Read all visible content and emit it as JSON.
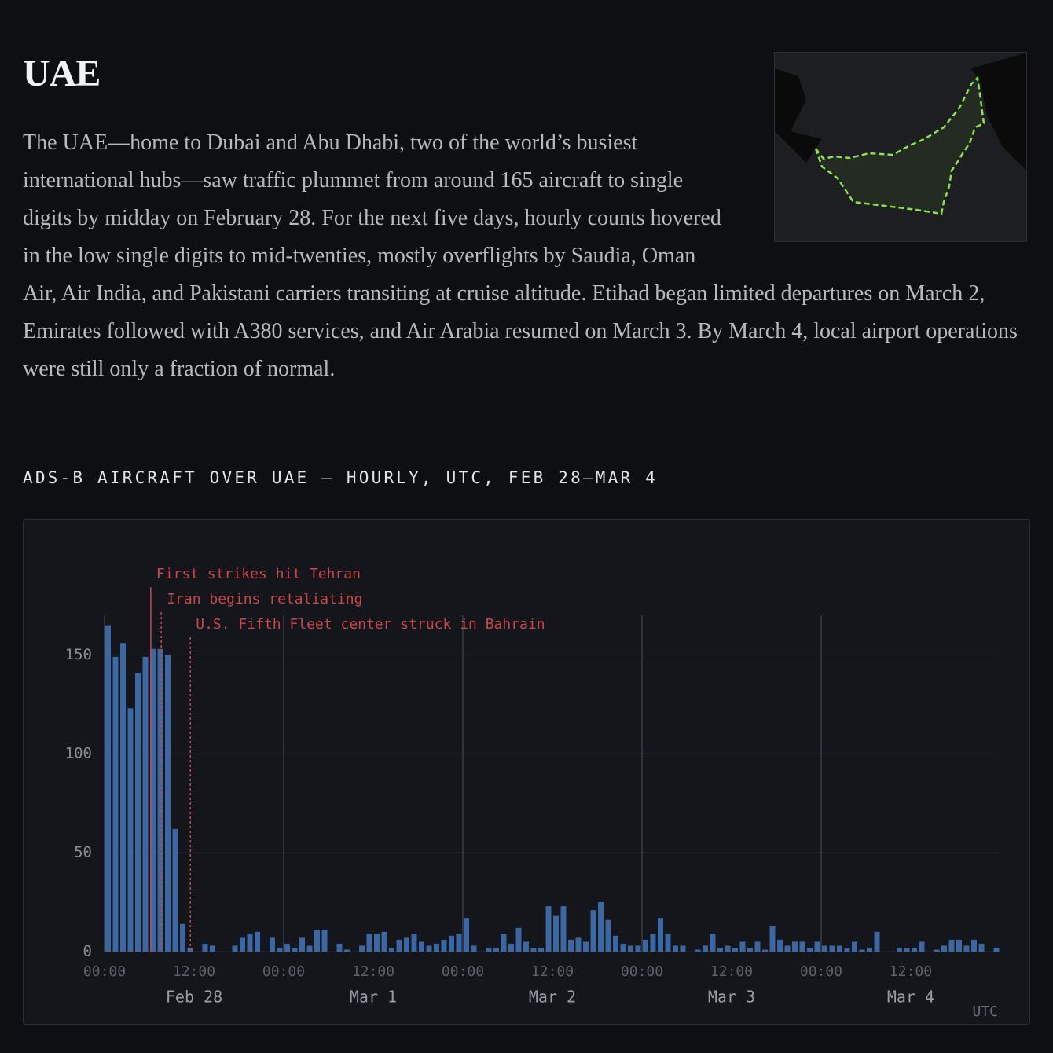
{
  "header": {
    "title": "UAE",
    "body": "The UAE—home to Dubai and Abu Dhabi, two of the world’s busiest international hubs—saw traffic plummet from around 165 aircraft to single digits by midday on February 28. For the next five days, hourly counts hovered in the low single digits to mid-twenties, mostly overflights by Saudia, Oman Air, Air India, and Pakistani carriers transiting at cruise altitude. Etihad began limited departures on March 2, Emirates followed with A380 services, and Air Arabia resumed on March 3. By March 4, local airport operations were still only a fraction of normal."
  },
  "chart_data": {
    "type": "bar",
    "title": "ADS-B AIRCRAFT OVER UAE — HOURLY, UTC, FEB 28–MAR 4",
    "x": [
      0,
      1,
      2,
      3,
      4,
      5,
      6,
      7,
      8,
      9,
      10,
      11,
      12,
      13,
      14,
      15,
      16,
      17,
      18,
      19,
      20,
      21,
      22,
      23,
      24,
      25,
      26,
      27,
      28,
      29,
      30,
      31,
      32,
      33,
      34,
      35,
      36,
      37,
      38,
      39,
      40,
      41,
      42,
      43,
      44,
      45,
      46,
      47,
      48,
      49,
      50,
      51,
      52,
      53,
      54,
      55,
      56,
      57,
      58,
      59,
      60,
      61,
      62,
      63,
      64,
      65,
      66,
      67,
      68,
      69,
      70,
      71,
      72,
      73,
      74,
      75,
      76,
      77,
      78,
      79,
      80,
      81,
      82,
      83,
      84,
      85,
      86,
      87,
      88,
      89,
      90,
      91,
      92,
      93,
      94,
      95,
      96,
      97,
      98,
      99,
      100,
      101,
      102,
      103,
      104,
      105,
      106,
      107,
      108,
      109,
      110,
      111,
      112,
      113,
      114,
      115,
      116,
      117,
      118,
      119
    ],
    "values": [
      165,
      149,
      156,
      123,
      141,
      149,
      153,
      153,
      150,
      62,
      14,
      2,
      0,
      4,
      3,
      0,
      0,
      3,
      7,
      9,
      10,
      0,
      7,
      2,
      4,
      2,
      7,
      3,
      11,
      11,
      0,
      4,
      1,
      0,
      3,
      9,
      9,
      10,
      2,
      6,
      7,
      9,
      5,
      3,
      4,
      6,
      8,
      9,
      17,
      3,
      0,
      2,
      2,
      9,
      4,
      12,
      5,
      2,
      2,
      23,
      18,
      23,
      6,
      7,
      5,
      21,
      25,
      16,
      8,
      4,
      3,
      3,
      6,
      9,
      17,
      9,
      3,
      3,
      0,
      1,
      3,
      9,
      2,
      3,
      2,
      5,
      2,
      5,
      1,
      13,
      6,
      3,
      5,
      5,
      2,
      5,
      3,
      3,
      3,
      2,
      5,
      1,
      2,
      10,
      0,
      0,
      2,
      2,
      2,
      5,
      0,
      1,
      3,
      6,
      6,
      3,
      6,
      4,
      0,
      2
    ],
    "color": "#3b67a3",
    "xlim": [
      0,
      120
    ],
    "xticks": [
      {
        "value": 0,
        "label": "00:00"
      },
      {
        "value": 12,
        "label": "12:00"
      },
      {
        "value": 24,
        "label": "00:00"
      },
      {
        "value": 36,
        "label": "12:00"
      },
      {
        "value": 48,
        "label": "00:00"
      },
      {
        "value": 60,
        "label": "12:00"
      },
      {
        "value": 72,
        "label": "00:00"
      },
      {
        "value": 84,
        "label": "12:00"
      },
      {
        "value": 96,
        "label": "00:00"
      },
      {
        "value": 108,
        "label": "12:00"
      }
    ],
    "day_labels": [
      {
        "value": 12,
        "label": "Feb 28"
      },
      {
        "value": 36,
        "label": "Mar 1"
      },
      {
        "value": 60,
        "label": "Mar 2"
      },
      {
        "value": 84,
        "label": "Mar 3"
      },
      {
        "value": 108,
        "label": "Mar 4"
      }
    ],
    "ylim": [
      0,
      170
    ],
    "yticks": [
      0,
      50,
      100,
      150
    ],
    "grid": true,
    "annotations": [
      {
        "x": 6.2,
        "label": "First strikes hit Tehran",
        "style": "solid"
      },
      {
        "x": 7.6,
        "label": "Iran begins retaliating",
        "style": "dashed"
      },
      {
        "x": 11.5,
        "label": "U.S. Fifth Fleet center struck in Bahrain",
        "style": "dashed"
      }
    ],
    "annotation_color": "#c9464c",
    "timezone_label": "UTC"
  }
}
